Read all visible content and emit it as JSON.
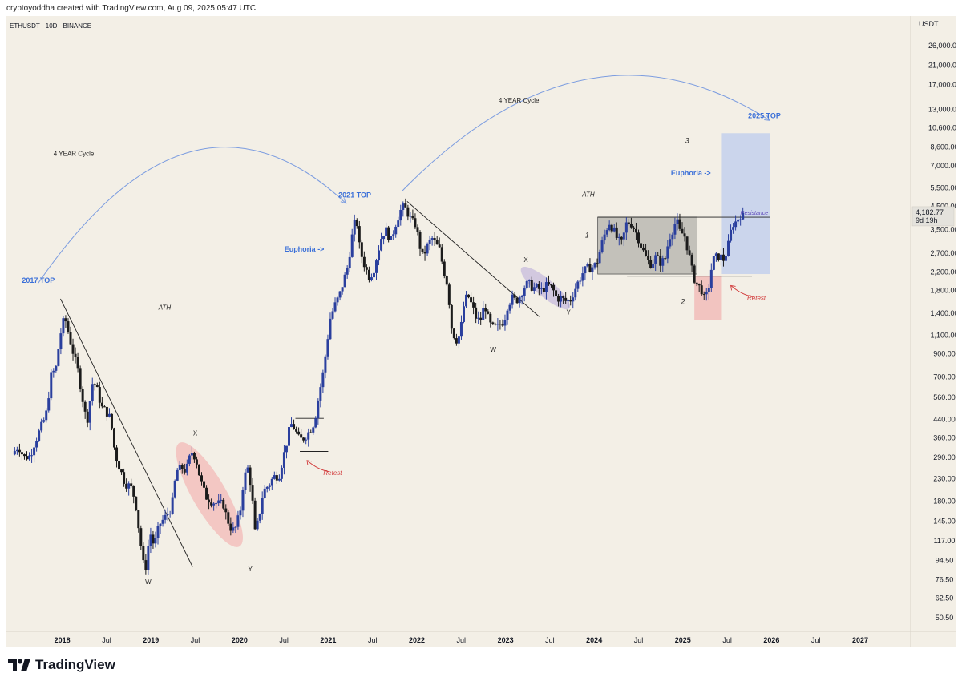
{
  "header": {
    "attribution": "cryptoyoddha created with TradingView.com, Aug 09, 2025 05:47 UTC"
  },
  "footer": {
    "brand": "TradingView"
  },
  "colors": {
    "background": "#f3efe6",
    "candle_up": "#2a3f9e",
    "candle_down": "#1b1b1b",
    "accent_blue": "#3a6fd8",
    "retest_red": "#d23b3b",
    "consolidation_gray": "#9b9b96",
    "pink_zone": "#f2a6a6",
    "target_blue": "#a9c0f0",
    "purple_zone": "#b6a8d8",
    "arc_blue": "#7b9ce0"
  },
  "chart_data": {
    "type": "candlestick",
    "symbol_label": "ETHUSDT · 10D · BINANCE",
    "currency": "USDT",
    "scale": "log",
    "y_ticks": [
      50.5,
      62.5,
      76.5,
      94.5,
      117,
      145,
      180,
      230,
      290,
      360,
      440,
      560,
      700,
      900,
      1100,
      1400,
      1800,
      2200,
      2700,
      3500,
      4500,
      5500,
      7000,
      8600,
      10600,
      13000,
      17000,
      21000,
      26000
    ],
    "y_tick_labels": [
      "50.50",
      "62.50",
      "76.50",
      "94.50",
      "117.00",
      "145.00",
      "180.00",
      "230.00",
      "290.00",
      "360.00",
      "440.00",
      "560.00",
      "700.00",
      "900.00",
      "1,100.00",
      "1,400.00",
      "1,800.00",
      "2,200.00",
      "2,700.00",
      "3,500.00",
      "4,500.00",
      "5,500.00",
      "7,000.00",
      "8,600.00",
      "10,600.00",
      "13,000.00",
      "17,000.00",
      "21,000.00",
      "26,000.00"
    ],
    "x_tick_labels": [
      "2018",
      "Jul",
      "2019",
      "Jul",
      "2020",
      "Jul",
      "2021",
      "Jul",
      "2022",
      "Jul",
      "2023",
      "Jul",
      "2024",
      "Jul",
      "2025",
      "Jul",
      "2026",
      "Jul",
      "2027"
    ],
    "x_tick_times": [
      2018.0,
      2018.5,
      2019.0,
      2019.5,
      2020.0,
      2020.5,
      2021.0,
      2021.5,
      2022.0,
      2022.5,
      2023.0,
      2023.5,
      2024.0,
      2024.5,
      2025.0,
      2025.5,
      2026.0,
      2026.5,
      2027.0
    ],
    "x_range": [
      2017.37,
      2027.57
    ],
    "last_price": {
      "value": 4182.77,
      "label": "4,182.77",
      "countdown": "9d 19h"
    },
    "price_path": [
      [
        2017.45,
        300
      ],
      [
        2017.52,
        330
      ],
      [
        2017.58,
        290
      ],
      [
        2017.65,
        295
      ],
      [
        2017.7,
        340
      ],
      [
        2017.77,
        400
      ],
      [
        2017.83,
        460
      ],
      [
        2017.89,
        720
      ],
      [
        2017.94,
        760
      ],
      [
        2017.99,
        1100
      ],
      [
        2018.04,
        1350
      ],
      [
        2018.09,
        1100
      ],
      [
        2018.14,
        900
      ],
      [
        2018.19,
        750
      ],
      [
        2018.24,
        560
      ],
      [
        2018.29,
        420
      ],
      [
        2018.36,
        680
      ],
      [
        2018.41,
        600
      ],
      [
        2018.46,
        500
      ],
      [
        2018.51,
        480
      ],
      [
        2018.56,
        440
      ],
      [
        2018.61,
        300
      ],
      [
        2018.66,
        260
      ],
      [
        2018.72,
        220
      ],
      [
        2018.79,
        210
      ],
      [
        2018.84,
        180
      ],
      [
        2018.89,
        120
      ],
      [
        2018.93,
        90
      ],
      [
        2018.96,
        88
      ],
      [
        2019.0,
        130
      ],
      [
        2019.05,
        110
      ],
      [
        2019.11,
        140
      ],
      [
        2019.17,
        150
      ],
      [
        2019.25,
        170
      ],
      [
        2019.3,
        250
      ],
      [
        2019.36,
        260
      ],
      [
        2019.41,
        250
      ],
      [
        2019.47,
        310
      ],
      [
        2019.52,
        290
      ],
      [
        2019.57,
        230
      ],
      [
        2019.63,
        190
      ],
      [
        2019.7,
        180
      ],
      [
        2019.77,
        175
      ],
      [
        2019.83,
        175
      ],
      [
        2019.87,
        150
      ],
      [
        2019.93,
        130
      ],
      [
        2019.97,
        135
      ],
      [
        2020.02,
        160
      ],
      [
        2020.06,
        230
      ],
      [
        2020.11,
        260
      ],
      [
        2020.15,
        200
      ],
      [
        2020.19,
        125
      ],
      [
        2020.23,
        150
      ],
      [
        2020.28,
        200
      ],
      [
        2020.34,
        215
      ],
      [
        2020.4,
        235
      ],
      [
        2020.46,
        240
      ],
      [
        2020.53,
        320
      ],
      [
        2020.59,
        420
      ],
      [
        2020.63,
        400
      ],
      [
        2020.69,
        350
      ],
      [
        2020.74,
        360
      ],
      [
        2020.8,
        385
      ],
      [
        2020.86,
        430
      ],
      [
        2020.91,
        580
      ],
      [
        2020.95,
        700
      ],
      [
        2021.0,
        1000
      ],
      [
        2021.03,
        1300
      ],
      [
        2021.08,
        1500
      ],
      [
        2021.14,
        1700
      ],
      [
        2021.18,
        1950
      ],
      [
        2021.23,
        2300
      ],
      [
        2021.29,
        3400
      ],
      [
        2021.33,
        4000
      ],
      [
        2021.37,
        2800
      ],
      [
        2021.42,
        2400
      ],
      [
        2021.47,
        2100
      ],
      [
        2021.52,
        2200
      ],
      [
        2021.57,
        2700
      ],
      [
        2021.62,
        3300
      ],
      [
        2021.66,
        3500
      ],
      [
        2021.72,
        3100
      ],
      [
        2021.78,
        3800
      ],
      [
        2021.83,
        4300
      ],
      [
        2021.87,
        4500
      ],
      [
        2021.91,
        4200
      ],
      [
        2021.96,
        3800
      ],
      [
        2022.0,
        3700
      ],
      [
        2022.04,
        3000
      ],
      [
        2022.08,
        2600
      ],
      [
        2022.13,
        2900
      ],
      [
        2022.18,
        3200
      ],
      [
        2022.22,
        3000
      ],
      [
        2022.27,
        2800
      ],
      [
        2022.32,
        2200
      ],
      [
        2022.36,
        1900
      ],
      [
        2022.41,
        1150
      ],
      [
        2022.46,
        1050
      ],
      [
        2022.5,
        1100
      ],
      [
        2022.55,
        1600
      ],
      [
        2022.59,
        1700
      ],
      [
        2022.64,
        1500
      ],
      [
        2022.69,
        1300
      ],
      [
        2022.73,
        1300
      ],
      [
        2022.78,
        1550
      ],
      [
        2022.83,
        1250
      ],
      [
        2022.87,
        1200
      ],
      [
        2022.92,
        1200
      ],
      [
        2022.96,
        1250
      ],
      [
        2023.0,
        1300
      ],
      [
        2023.04,
        1550
      ],
      [
        2023.09,
        1650
      ],
      [
        2023.13,
        1600
      ],
      [
        2023.18,
        1700
      ],
      [
        2023.22,
        1850
      ],
      [
        2023.27,
        1950
      ],
      [
        2023.32,
        1850
      ],
      [
        2023.36,
        1850
      ],
      [
        2023.42,
        1800
      ],
      [
        2023.48,
        1900
      ],
      [
        2023.54,
        1850
      ],
      [
        2023.59,
        1650
      ],
      [
        2023.64,
        1650
      ],
      [
        2023.69,
        1600
      ],
      [
        2023.74,
        1600
      ],
      [
        2023.79,
        1800
      ],
      [
        2023.84,
        2000
      ],
      [
        2023.89,
        2200
      ],
      [
        2023.94,
        2300
      ],
      [
        2023.98,
        2300
      ],
      [
        2024.04,
        2400
      ],
      [
        2024.09,
        2900
      ],
      [
        2024.14,
        3400
      ],
      [
        2024.18,
        3800
      ],
      [
        2024.23,
        3500
      ],
      [
        2024.28,
        3100
      ],
      [
        2024.33,
        3000
      ],
      [
        2024.37,
        3700
      ],
      [
        2024.42,
        3800
      ],
      [
        2024.47,
        3500
      ],
      [
        2024.51,
        3200
      ],
      [
        2024.56,
        2800
      ],
      [
        2024.61,
        2500
      ],
      [
        2024.66,
        2400
      ],
      [
        2024.71,
        2600
      ],
      [
        2024.76,
        2450
      ],
      [
        2024.81,
        2500
      ],
      [
        2024.86,
        3200
      ],
      [
        2024.9,
        3500
      ],
      [
        2024.94,
        3900
      ],
      [
        2024.98,
        3400
      ],
      [
        2025.03,
        3300
      ],
      [
        2025.08,
        2700
      ],
      [
        2025.13,
        2100
      ],
      [
        2025.18,
        1900
      ],
      [
        2025.23,
        1800
      ],
      [
        2025.26,
        1600
      ],
      [
        2025.3,
        1800
      ],
      [
        2025.35,
        2500
      ],
      [
        2025.4,
        2600
      ],
      [
        2025.44,
        2600
      ],
      [
        2025.48,
        2500
      ],
      [
        2025.53,
        3000
      ],
      [
        2025.57,
        3700
      ],
      [
        2025.61,
        3800
      ],
      [
        2025.66,
        4100
      ],
      [
        2025.69,
        4180
      ]
    ],
    "lines": [
      {
        "kind": "ath",
        "label": "ATH",
        "t1": 2017.98,
        "t2": 2020.33,
        "price": 1420
      },
      {
        "kind": "ath",
        "label": "ATH",
        "t1": 2021.89,
        "t2": 2025.98,
        "price": 4870
      },
      {
        "kind": "level",
        "label": "",
        "t1": 2020.63,
        "t2": 2020.95,
        "price": 445
      },
      {
        "kind": "level",
        "label": "",
        "t1": 2020.68,
        "t2": 2021.0,
        "price": 310
      },
      {
        "kind": "level",
        "label": "",
        "t1": 2024.37,
        "t2": 2025.78,
        "price": 2100
      },
      {
        "kind": "resistance",
        "label": "Resistance",
        "t1": 2024.04,
        "t2": 2025.98,
        "price": 4000
      },
      {
        "kind": "trend",
        "label": "",
        "t1": 2017.98,
        "p1": 1640,
        "t2": 2019.47,
        "p2": 88
      },
      {
        "kind": "trend",
        "label": "",
        "t1": 2021.89,
        "p1": 4750,
        "t2": 2023.38,
        "p2": 1350
      }
    ],
    "zones": [
      {
        "kind": "consolidation",
        "t1": 2024.04,
        "t2": 2025.16,
        "p1": 2150,
        "p2": 4000
      },
      {
        "kind": "retest-zone",
        "t1": 2025.13,
        "t2": 2025.44,
        "p1": 1300,
        "p2": 2100
      },
      {
        "kind": "target",
        "t1": 2025.44,
        "t2": 2025.98,
        "p1": 2150,
        "p2": 10000
      }
    ],
    "ellipses": [
      {
        "kind": "pink",
        "t1": 2019.32,
        "t2": 2020.0,
        "p1": 110,
        "p2": 340
      },
      {
        "kind": "purple",
        "t1": 2023.18,
        "t2": 2023.72,
        "p1": 1480,
        "p2": 2300
      }
    ],
    "arcs": [
      {
        "label": "4 YEAR Cycle",
        "t1": 2017.73,
        "p1": 1950,
        "t2": 2021.2,
        "p2": 4650,
        "peak_price": 8200,
        "label_t": 2018.13,
        "label_p": 7800
      },
      {
        "label": "4 YEAR Cycle",
        "t1": 2021.83,
        "p1": 5300,
        "t2": 2025.98,
        "p2": 11500,
        "peak_price": 18000,
        "label_t": 2023.15,
        "label_p": 14000
      }
    ],
    "texts": [
      {
        "style": "blue-bold",
        "text": "2017 TOP",
        "t": 2017.73,
        "p": 1950
      },
      {
        "style": "blue-bold",
        "text": "2021 TOP",
        "t": 2021.3,
        "p": 4950
      },
      {
        "style": "blue-bold",
        "text": "2025 TOP",
        "t": 2025.92,
        "p": 11800
      },
      {
        "style": "blue-bold",
        "text": "Euphoria ->",
        "t": 2020.73,
        "p": 2750
      },
      {
        "style": "blue-bold",
        "text": "Euphoria ->",
        "t": 2025.09,
        "p": 6300
      },
      {
        "style": "red-italic",
        "text": "Retest",
        "t": 2021.05,
        "p": 240
      },
      {
        "style": "red-italic",
        "text": "Retest",
        "t": 2025.83,
        "p": 1620
      },
      {
        "style": "dark-italic",
        "text": "1",
        "t": 2023.92,
        "p": 3200
      },
      {
        "style": "dark-italic",
        "text": "2",
        "t": 2025.0,
        "p": 1550
      },
      {
        "style": "dark-italic",
        "text": "3",
        "t": 2025.05,
        "p": 9000
      },
      {
        "style": "dark",
        "text": "W",
        "t": 2018.97,
        "p": 73
      },
      {
        "style": "dark",
        "text": "X",
        "t": 2019.5,
        "p": 370
      },
      {
        "style": "dark",
        "text": "Y",
        "t": 2020.12,
        "p": 84
      },
      {
        "style": "dark",
        "text": "W",
        "t": 2022.86,
        "p": 920
      },
      {
        "style": "dark",
        "text": "X",
        "t": 2023.23,
        "p": 2450
      },
      {
        "style": "dark",
        "text": "Y",
        "t": 2023.71,
        "p": 1380
      }
    ]
  }
}
